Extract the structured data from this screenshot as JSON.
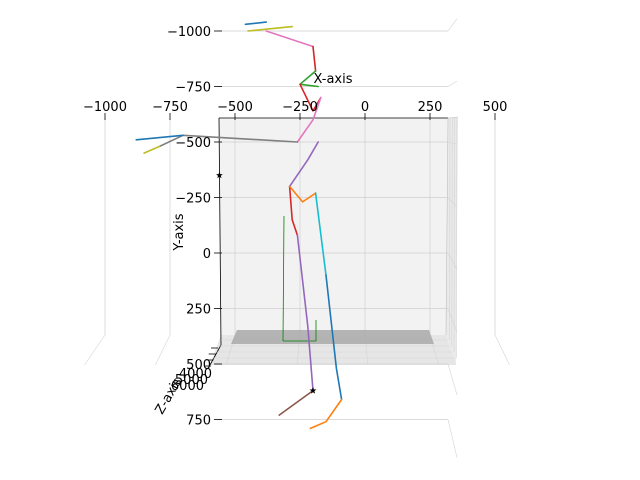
{
  "chart_data": {
    "type": "line3d",
    "title": "",
    "xlabel": "X-axis",
    "ylabel": "Y-axis",
    "zlabel": "Z-axis",
    "x_ticks": [
      "−1000",
      "−750",
      "−500",
      "−250",
      "0",
      "250",
      "500"
    ],
    "y_ticks": [
      "−1000",
      "−750",
      "−500",
      "−250",
      "0",
      "250",
      "500",
      "750"
    ],
    "z_ticks": [
      "4000",
      "5000",
      "6000"
    ],
    "xlim": [
      -1150,
      650
    ],
    "ylim": [
      -1150,
      850
    ],
    "grid": true,
    "skeleton_segments": [
      {
        "color": "#1f77b4",
        "points": [
          [
            -460,
            -1030
          ],
          [
            -380,
            -1040
          ]
        ]
      },
      {
        "color": "#bcbd22",
        "points": [
          [
            -450,
            -1000
          ],
          [
            -280,
            -1020
          ]
        ]
      },
      {
        "color": "#e377c2",
        "points": [
          [
            -380,
            -1000
          ],
          [
            -200,
            -930
          ]
        ]
      },
      {
        "color": "#d62728",
        "points": [
          [
            -200,
            -930
          ],
          [
            -190,
            -820
          ]
        ]
      },
      {
        "color": "#2ca02c",
        "points": [
          [
            -190,
            -820
          ],
          [
            -250,
            -760
          ],
          [
            -180,
            -750
          ]
        ]
      },
      {
        "color": "#d62728",
        "points": [
          [
            -250,
            -760
          ],
          [
            -200,
            -640
          ],
          [
            -170,
            -700
          ]
        ]
      },
      {
        "color": "#e377c2",
        "points": [
          [
            -170,
            -700
          ],
          [
            -200,
            -600
          ],
          [
            -260,
            -500
          ]
        ]
      },
      {
        "color": "#7f7f7f",
        "points": [
          [
            -260,
            -500
          ],
          [
            -700,
            -530
          ],
          [
            -790,
            -480
          ]
        ]
      },
      {
        "color": "#1f77b4",
        "points": [
          [
            -700,
            -530
          ],
          [
            -880,
            -510
          ]
        ]
      },
      {
        "color": "#bcbd22",
        "points": [
          [
            -790,
            -480
          ],
          [
            -850,
            -450
          ]
        ]
      },
      {
        "color": "#9467bd",
        "points": [
          [
            -180,
            -500
          ],
          [
            -220,
            -420
          ],
          [
            -290,
            -300
          ]
        ]
      },
      {
        "color": "#d62728",
        "points": [
          [
            -290,
            -300
          ],
          [
            -280,
            -150
          ],
          [
            -260,
            -80
          ]
        ]
      },
      {
        "color": "#ff7f0e",
        "points": [
          [
            -290,
            -300
          ],
          [
            -240,
            -230
          ],
          [
            -190,
            -270
          ]
        ]
      },
      {
        "color": "#17becf",
        "points": [
          [
            -190,
            -270
          ],
          [
            -150,
            100
          ]
        ]
      },
      {
        "color": "#1f77b4",
        "points": [
          [
            -150,
            100
          ],
          [
            -110,
            520
          ],
          [
            -90,
            660
          ]
        ]
      },
      {
        "color": "#9467bd",
        "points": [
          [
            -260,
            -80
          ],
          [
            -220,
            330
          ],
          [
            -200,
            620
          ]
        ]
      },
      {
        "color": "#8c564b",
        "points": [
          [
            -200,
            620
          ],
          [
            -330,
            730
          ]
        ]
      },
      {
        "color": "#ff7f0e",
        "points": [
          [
            -90,
            660
          ],
          [
            -150,
            760
          ],
          [
            -210,
            790
          ]
        ]
      }
    ],
    "markers": [
      {
        "x": -560,
        "y": -350
      },
      {
        "x": -200,
        "y": 620
      }
    ],
    "floor_color": "#a9a9a9"
  }
}
